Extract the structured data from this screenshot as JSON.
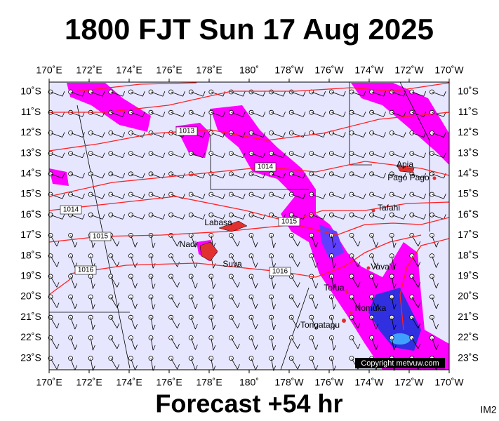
{
  "header": {
    "title": "1800 FJT Sun 17 Aug 2025"
  },
  "footer": {
    "forecast": "Forecast +54 hr",
    "image_id": "IM2"
  },
  "map": {
    "longitude_labels": [
      "170˚E",
      "172˚E",
      "174˚E",
      "176˚E",
      "178˚E",
      "180˚",
      "178˚W",
      "176˚W",
      "174˚W",
      "172˚W",
      "170˚W"
    ],
    "latitude_labels": [
      "10˚S",
      "11˚S",
      "12˚S",
      "13˚S",
      "14˚S",
      "15˚S",
      "16˚S",
      "17˚S",
      "18˚S",
      "19˚S",
      "20˚S",
      "21˚S",
      "22˚S",
      "23˚S"
    ],
    "places": [
      "Apia",
      "Pago Pago",
      "Tafahi",
      "Labasa",
      "Nadi",
      "Suva",
      "Vava'u",
      "Tofua",
      "Nomuka",
      "Tongatapu"
    ],
    "isobar_labels": [
      1013,
      1014,
      1014,
      1015,
      1015,
      1016,
      1016
    ],
    "copyright": "Copyright metvuw.com"
  }
}
